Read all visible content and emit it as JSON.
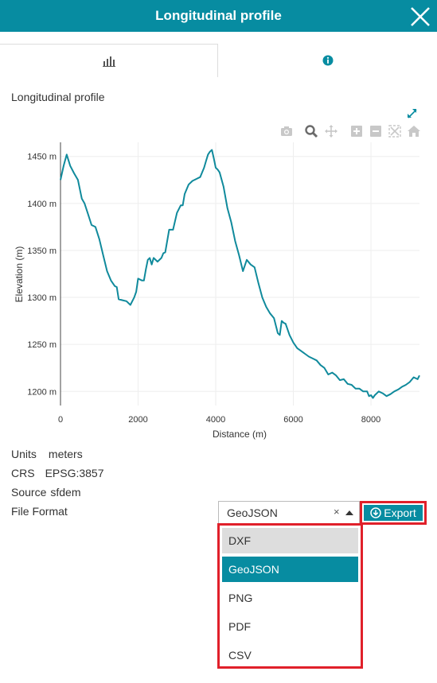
{
  "header": {
    "title": "Longitudinal profile"
  },
  "icons": {
    "close": "close-icon",
    "chart_tab": "bar-chart-icon",
    "info_tab": "info-circle-icon",
    "expand": "expand-arrows-icon",
    "modebar": [
      "camera-icon",
      "zoom-icon",
      "pan-icon",
      "zoom-in-icon",
      "zoom-out-icon",
      "autoscale-icon",
      "reset-home-icon"
    ]
  },
  "colors": {
    "accent": "#078ca1",
    "line": "#108a9c",
    "highlight_border": "#e0202a"
  },
  "section_title": "Longitudinal profile",
  "chart_data": {
    "type": "line",
    "xlabel": "Distance (m)",
    "ylabel": "Elevation (m)",
    "xlim": [
      0,
      9250
    ],
    "ylim": [
      1185,
      1465
    ],
    "x_ticks": [
      0,
      2000,
      4000,
      6000,
      8000
    ],
    "y_ticks": [
      1200,
      1250,
      1300,
      1350,
      1400,
      1450
    ],
    "x_tick_labels": [
      "0",
      "2000",
      "4000",
      "6000",
      "8000"
    ],
    "y_tick_labels": [
      "1200 m",
      "1250 m",
      "1300 m",
      "1350 m",
      "1400 m",
      "1450 m"
    ],
    "grid": true,
    "series": [
      {
        "x": [
          0,
          80,
          160,
          250,
          350,
          450,
          550,
          620,
          700,
          800,
          900,
          1000,
          1100,
          1200,
          1300,
          1400,
          1450,
          1500,
          1600,
          1700,
          1800,
          1900,
          1950,
          2000,
          2100,
          2150,
          2200,
          2250,
          2300,
          2350,
          2400,
          2500,
          2600,
          2650,
          2700,
          2800,
          2900,
          3000,
          3100,
          3150,
          3200,
          3300,
          3400,
          3500,
          3600,
          3700,
          3750,
          3800,
          3850,
          3900,
          3950,
          4000,
          4050,
          4100,
          4200,
          4300,
          4400,
          4500,
          4600,
          4700,
          4800,
          4900,
          5000,
          5100,
          5200,
          5300,
          5400,
          5500,
          5600,
          5650,
          5700,
          5750,
          5800,
          5900,
          6000,
          6100,
          6200,
          6300,
          6400,
          6500,
          6600,
          6700,
          6800,
          6900,
          7000,
          7100,
          7200,
          7300,
          7400,
          7500,
          7600,
          7700,
          7800,
          7900,
          7950,
          8000,
          8050,
          8100,
          8200,
          8300,
          8400,
          8500,
          8600,
          8700,
          8800,
          8900,
          9000,
          9100,
          9200,
          9250
        ],
        "y": [
          1425,
          1440,
          1452,
          1440,
          1432,
          1425,
          1405,
          1400,
          1390,
          1377,
          1375,
          1362,
          1345,
          1328,
          1318,
          1312,
          1311,
          1298,
          1297,
          1296,
          1292,
          1300,
          1306,
          1320,
          1318,
          1318,
          1330,
          1340,
          1342,
          1335,
          1342,
          1338,
          1342,
          1347,
          1348,
          1372,
          1372,
          1390,
          1398,
          1398,
          1410,
          1420,
          1424,
          1426,
          1428,
          1438,
          1445,
          1452,
          1455,
          1457,
          1448,
          1438,
          1436,
          1433,
          1418,
          1395,
          1380,
          1360,
          1345,
          1328,
          1340,
          1335,
          1332,
          1315,
          1300,
          1290,
          1283,
          1278,
          1262,
          1260,
          1275,
          1273,
          1272,
          1260,
          1252,
          1246,
          1243,
          1240,
          1237,
          1235,
          1233,
          1228,
          1225,
          1218,
          1220,
          1217,
          1212,
          1213,
          1208,
          1207,
          1203,
          1203,
          1200,
          1200,
          1195,
          1196,
          1193,
          1196,
          1200,
          1198,
          1195,
          1197,
          1200,
          1202,
          1205,
          1207,
          1210,
          1215,
          1213,
          1217
        ]
      }
    ]
  },
  "meta": [
    {
      "key": "Units",
      "value": "meters"
    },
    {
      "key": "CRS",
      "value": "EPSG:3857"
    },
    {
      "key": "Source",
      "value": "sfdem"
    }
  ],
  "file_format": {
    "label": "File Format",
    "selected": "GeoJSON",
    "clear_symbol": "×",
    "options": [
      "DXF",
      "GeoJSON",
      "PNG",
      "PDF",
      "CSV"
    ],
    "hovered": "DXF"
  },
  "export": {
    "label": "Export"
  }
}
